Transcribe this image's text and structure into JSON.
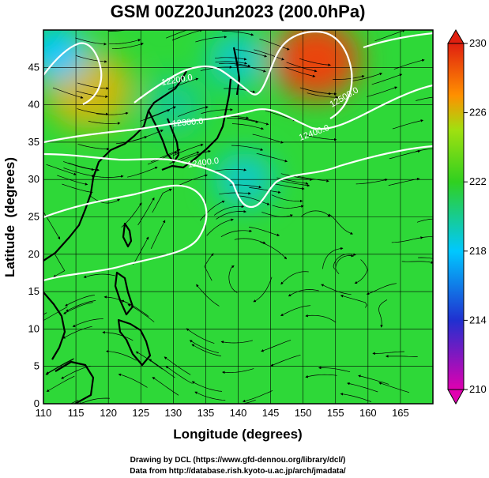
{
  "title": "GSM 00Z20Jun2023 (200.0hPa)",
  "credits": [
    "Drawing by DCL (https://www.gfd-dennou.org/library/dcl/)",
    "Data from http://database.rish.kyoto-u.ac.jp/arch/jmadata/"
  ],
  "chart_data": {
    "type": "heatmap",
    "xlabel": "Longitude (degrees)",
    "ylabel": "Latitude  (degrees)",
    "xlim": [
      110,
      170
    ],
    "ylim": [
      0,
      50
    ],
    "x_ticks": [
      110,
      115,
      120,
      125,
      130,
      135,
      140,
      145,
      150,
      155,
      160,
      165
    ],
    "y_ticks": [
      0,
      5,
      10,
      15,
      20,
      25,
      30,
      35,
      40,
      45
    ],
    "grid": true,
    "colorbar": {
      "range": [
        210,
        230
      ],
      "ticks": [
        210,
        214,
        218,
        222,
        226,
        230
      ],
      "colors": [
        "#e000b0",
        "#2030d0",
        "#00c8ff",
        "#30d020",
        "#a0e010",
        "#ff9000",
        "#e02010"
      ]
    },
    "contour_labels": [
      "12200.0",
      "12300.0",
      "12400.0",
      "12500.0"
    ],
    "warm_centers": [
      {
        "lon": 152,
        "lat": 46,
        "value": 229
      },
      {
        "lon": 117,
        "lat": 42,
        "value": 226
      }
    ],
    "cool_centers": [
      {
        "lon": 112,
        "lat": 47,
        "value": 218
      },
      {
        "lon": 140,
        "lat": 46,
        "value": 219
      },
      {
        "lon": 141,
        "lat": 30,
        "value": 219
      },
      {
        "lon": 130,
        "lat": 40,
        "value": 220
      }
    ]
  }
}
